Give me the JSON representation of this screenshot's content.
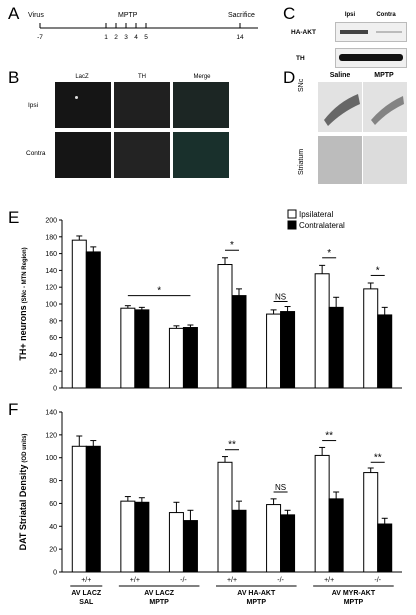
{
  "panels": {
    "A": "A",
    "B": "B",
    "C": "C",
    "D": "D",
    "E": "E",
    "F": "F"
  },
  "timeline": {
    "virus_label": "Virus",
    "mptp_label": "MPTP",
    "sacrifice_label": "Sacrifice",
    "ticks": [
      "-7",
      "1",
      "2",
      "3",
      "4",
      "5",
      "14"
    ]
  },
  "panel_b": {
    "columns": [
      "LacZ",
      "TH",
      "Merge"
    ],
    "rows": [
      "Ipsi",
      "Contra"
    ]
  },
  "panel_c": {
    "columns": [
      "Ipsi",
      "Contra"
    ],
    "rows": [
      "HA-AKT",
      "TH"
    ]
  },
  "panel_d": {
    "columns": [
      "Saline",
      "MPTP"
    ],
    "rows": [
      "SNc",
      "Striatum"
    ]
  },
  "legend": {
    "ipsi": "Ipsilateral",
    "contra": "Contralateral"
  },
  "colors": {
    "ipsi": "#ffffff",
    "contra": "#000000",
    "stroke": "#000000"
  },
  "groups": [
    {
      "genotype": "+/+",
      "treatment": "AV LACZ",
      "drug": "SAL"
    },
    {
      "genotype": "+/+",
      "treatment": "AV LACZ",
      "drug": "MPTP"
    },
    {
      "genotype": "-/-",
      "treatment": "",
      "drug": ""
    },
    {
      "genotype": "+/+",
      "treatment": "AV HA-AKT",
      "drug": "MPTP"
    },
    {
      "genotype": "-/-",
      "treatment": "",
      "drug": ""
    },
    {
      "genotype": "+/+",
      "treatment": "AV MYR-AKT",
      "drug": "MPTP"
    },
    {
      "genotype": "-/-",
      "treatment": "",
      "drug": ""
    }
  ],
  "chart_data": [
    {
      "type": "bar",
      "panel": "E",
      "ylabel": "TH+ neurons",
      "ylabel_sub": "(SNc - MTN Region)",
      "ylim": [
        0,
        200
      ],
      "yticks": [
        "0",
        "20",
        "40",
        "60",
        "80",
        "100",
        "120",
        "140",
        "160",
        "180",
        "200"
      ],
      "series": [
        {
          "name": "Ipsilateral",
          "values": [
            176,
            95,
            71,
            147,
            88,
            136,
            118
          ],
          "errors": [
            5,
            3,
            3,
            8,
            5,
            10,
            7
          ]
        },
        {
          "name": "Contralateral",
          "values": [
            162,
            93,
            72,
            110,
            91,
            96,
            87
          ],
          "errors": [
            6,
            3,
            3,
            8,
            6,
            12,
            9
          ]
        }
      ],
      "annotations": [
        {
          "text": "*",
          "from": 1,
          "to": 2,
          "y": 110
        },
        {
          "text": "*",
          "group": 3,
          "y": 164
        },
        {
          "text": "NS",
          "group": 4,
          "y": 103
        },
        {
          "text": "*",
          "group": 5,
          "y": 155
        },
        {
          "text": "*",
          "group": 6,
          "y": 134
        }
      ]
    },
    {
      "type": "bar",
      "panel": "F",
      "ylabel": "DAT Striatal Density",
      "ylabel_sub": "(OD units)",
      "ylim": [
        0,
        140
      ],
      "yticks": [
        "0",
        "20",
        "40",
        "60",
        "80",
        "100",
        "120",
        "140"
      ],
      "series": [
        {
          "name": "Ipsilateral",
          "values": [
            110,
            62,
            52,
            96,
            59,
            102,
            87
          ],
          "errors": [
            9,
            4,
            9,
            5,
            5,
            7,
            4
          ]
        },
        {
          "name": "Contralateral",
          "values": [
            110,
            61,
            45,
            54,
            50,
            64,
            42
          ],
          "errors": [
            5,
            4,
            9,
            8,
            4,
            6,
            5
          ]
        }
      ],
      "annotations": [
        {
          "text": "**",
          "group": 3,
          "y": 107
        },
        {
          "text": "NS",
          "group": 4,
          "y": 70
        },
        {
          "text": "**",
          "group": 5,
          "y": 115
        },
        {
          "text": "**",
          "group": 6,
          "y": 96
        }
      ]
    }
  ]
}
